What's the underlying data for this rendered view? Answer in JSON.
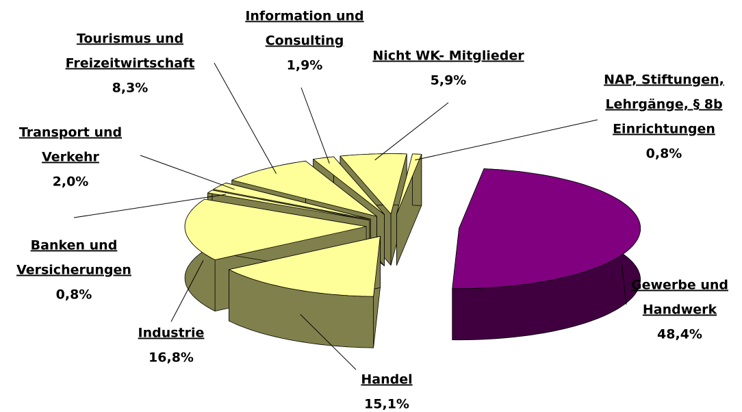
{
  "chart_data": {
    "type": "pie3d",
    "categories": [
      [
        "NAP, Stiftungen,",
        "Lehrgänge, § 8b",
        "Einrichtungen"
      ],
      [
        "Gewerbe und",
        "Handwerk"
      ],
      [
        "Handel"
      ],
      [
        "Industrie"
      ],
      [
        "Banken und",
        "Versicherungen"
      ],
      [
        "Transport und",
        "Verkehr"
      ],
      [
        "Tourismus und",
        "Freizeitwirtschaft"
      ],
      [
        "Information und",
        "Consulting"
      ],
      [
        "Nicht WK- Mitglieder"
      ]
    ],
    "values": [
      0.8,
      48.4,
      15.1,
      16.8,
      0.8,
      2.0,
      8.3,
      1.9,
      5.9
    ],
    "value_labels": [
      "0,8%",
      "48,4%",
      "15,1%",
      "16,8%",
      "0,8%",
      "2,0%",
      "8,3%",
      "1,9%",
      "5,9%"
    ],
    "colors": [
      "#ffff99",
      "#800080",
      "#ffff99",
      "#ffff99",
      "#ffff99",
      "#ffff99",
      "#ffff99",
      "#ffff99",
      "#ffff99"
    ]
  }
}
